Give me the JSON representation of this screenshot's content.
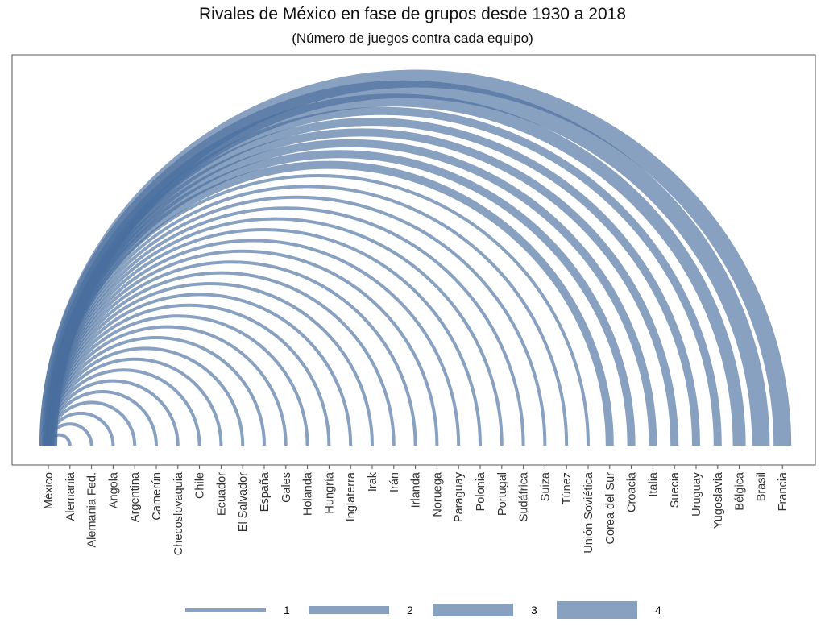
{
  "chart_data": {
    "type": "arc",
    "title": "Rivales de México en fase de grupos desde 1930 a 2018",
    "subtitle": "(Número de juegos contra cada equipo)",
    "origin": "México",
    "categories": [
      "México",
      "Alemania",
      "Alemania Fed.",
      "Angola",
      "Argentina",
      "Camerún",
      "Checoslovaquia",
      "Chile",
      "Ecuador",
      "El Salvador",
      "España",
      "Gales",
      "Holanda",
      "Hungría",
      "Inglaterra",
      "Irak",
      "Irán",
      "Irlanda",
      "Noruega",
      "Paraguay",
      "Polonia",
      "Portugal",
      "Sudáfrica",
      "Suiza",
      "Túnez",
      "Unión Soviética",
      "Corea del Sur",
      "Croacia",
      "Italia",
      "Suecia",
      "Uruguay",
      "Yugoslavia",
      "Bélgica",
      "Brasil",
      "Francia"
    ],
    "values": [
      null,
      1,
      1,
      1,
      1,
      1,
      1,
      1,
      1,
      1,
      1,
      1,
      1,
      1,
      1,
      1,
      1,
      1,
      1,
      1,
      1,
      1,
      1,
      1,
      1,
      1,
      2,
      2,
      2,
      2,
      2,
      2,
      3,
      4,
      4
    ],
    "legend": {
      "labels": [
        "1",
        "2",
        "3",
        "4"
      ],
      "values": [
        1,
        2,
        3,
        4
      ],
      "position": "bottom"
    },
    "colors": {
      "arc": "#4a6f9e"
    }
  }
}
